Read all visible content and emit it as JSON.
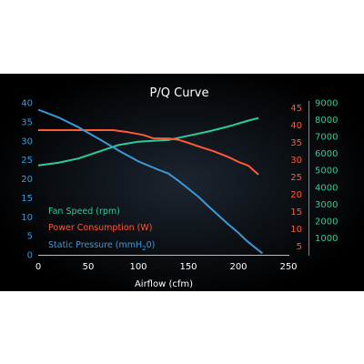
{
  "chart_data": {
    "type": "line",
    "title": "P/Q Curve",
    "xlabel": "Airflow (cfm)",
    "xlim": [
      0,
      250
    ],
    "x_ticks": [
      "0",
      "50",
      "100",
      "150",
      "200",
      "250"
    ],
    "axes": {
      "pressure": {
        "range": [
          0,
          40
        ],
        "ticks": [
          "0",
          "5",
          "10",
          "15",
          "20",
          "25",
          "30",
          "35",
          "40"
        ],
        "color": "#3a9ad9"
      },
      "power": {
        "range": [
          2.5,
          46.5
        ],
        "ticks": [
          "5",
          "10",
          "15",
          "20",
          "25",
          "30",
          "35",
          "40",
          "45"
        ],
        "color": "#ff5a36"
      },
      "speed": {
        "range": [
          0,
          9000
        ],
        "ticks": [
          "1000",
          "2000",
          "3000",
          "4000",
          "5000",
          "6000",
          "7000",
          "8000",
          "9000"
        ],
        "color": "#2ecc9a"
      }
    },
    "legend": [
      {
        "label": "Fan Speed (rpm)",
        "color": "#2ecc9a"
      },
      {
        "label": "Power Consumption (W)",
        "color": "#ff5a36"
      },
      {
        "label_main": "Static Pressure (mmH",
        "label_sub": "2",
        "label_end": "0)",
        "color": "#3a9ad9"
      }
    ],
    "legend_position": "left",
    "series": [
      {
        "axis": "speed",
        "color": "#2ecc9a",
        "points": [
          [
            0,
            5300
          ],
          [
            20,
            5450
          ],
          [
            40,
            5700
          ],
          [
            60,
            6100
          ],
          [
            80,
            6500
          ],
          [
            100,
            6700
          ],
          [
            130,
            6800
          ],
          [
            150,
            7050
          ],
          [
            170,
            7300
          ],
          [
            190,
            7600
          ],
          [
            210,
            7950
          ],
          [
            220,
            8100
          ]
        ]
      },
      {
        "axis": "power",
        "color": "#ff5a36",
        "points": [
          [
            0,
            38.6
          ],
          [
            30,
            38.6
          ],
          [
            60,
            38.6
          ],
          [
            75,
            38.6
          ],
          [
            90,
            38.0
          ],
          [
            105,
            37.2
          ],
          [
            115,
            36.2
          ],
          [
            130,
            36.2
          ],
          [
            140,
            35.8
          ],
          [
            150,
            34.9
          ],
          [
            160,
            33.9
          ],
          [
            175,
            32.5
          ],
          [
            190,
            30.8
          ],
          [
            200,
            29.4
          ],
          [
            210,
            28.3
          ],
          [
            220,
            25.7
          ]
        ]
      },
      {
        "axis": "pressure",
        "color": "#3a9ad9",
        "points": [
          [
            0,
            38.2
          ],
          [
            20,
            36.2
          ],
          [
            40,
            33.6
          ],
          [
            60,
            30.6
          ],
          [
            80,
            27.5
          ],
          [
            100,
            24.6
          ],
          [
            120,
            22.4
          ],
          [
            130,
            21.4
          ],
          [
            140,
            19.5
          ],
          [
            150,
            17.4
          ],
          [
            160,
            15.3
          ],
          [
            170,
            12.8
          ],
          [
            180,
            10.4
          ],
          [
            190,
            8.0
          ],
          [
            200,
            5.8
          ],
          [
            205,
            4.5
          ],
          [
            210,
            3.3
          ],
          [
            220,
            1.2
          ],
          [
            224,
            0.4
          ]
        ]
      }
    ]
  }
}
